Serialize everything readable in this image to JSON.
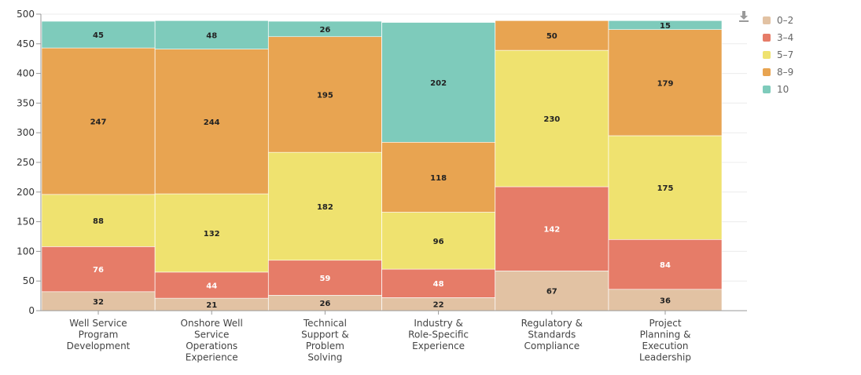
{
  "chart_data": {
    "type": "bar",
    "stacked": true,
    "categories": [
      "Well Service Program Development",
      "Onshore Well Service Operations Experience",
      "Technical Support & Problem Solving",
      "Industry & Role-Specific Experience",
      "Regulatory & Standards Compliance",
      "Project Planning & Execution Leadership"
    ],
    "category_lines": [
      [
        "Well Service",
        "Program",
        "Development"
      ],
      [
        "Onshore Well",
        "Service",
        "Operations",
        "Experience"
      ],
      [
        "Technical",
        "Support &",
        "Problem",
        "Solving"
      ],
      [
        "Industry &",
        "Role-Specific",
        "Experience"
      ],
      [
        "Regulatory &",
        "Standards",
        "Compliance"
      ],
      [
        "Project",
        "Planning &",
        "Execution",
        "Leadership"
      ]
    ],
    "series": [
      {
        "name": "0–2",
        "color": "#e2c2a3",
        "label_color": "#222222",
        "values": [
          32,
          21,
          26,
          22,
          67,
          36
        ]
      },
      {
        "name": "3–4",
        "color": "#e67c68",
        "label_color": "#ffffff",
        "values": [
          76,
          44,
          59,
          48,
          142,
          84
        ]
      },
      {
        "name": "5–7",
        "color": "#efe26f",
        "label_color": "#222222",
        "values": [
          88,
          132,
          182,
          96,
          230,
          175
        ]
      },
      {
        "name": "8–9",
        "color": "#e8a451",
        "label_color": "#222222",
        "values": [
          247,
          244,
          195,
          118,
          50,
          179
        ]
      },
      {
        "name": "10",
        "color": "#7ecbbb",
        "label_color": "#222222",
        "values": [
          45,
          48,
          26,
          202,
          0,
          15
        ]
      }
    ],
    "ylim": [
      0,
      500
    ],
    "yticks": [
      0,
      50,
      100,
      150,
      200,
      250,
      300,
      350,
      400,
      450,
      500
    ],
    "grid": true,
    "legend": "right",
    "title": "",
    "xlabel": "",
    "ylabel": ""
  },
  "toolbar": {
    "download_icon": "download-icon"
  }
}
